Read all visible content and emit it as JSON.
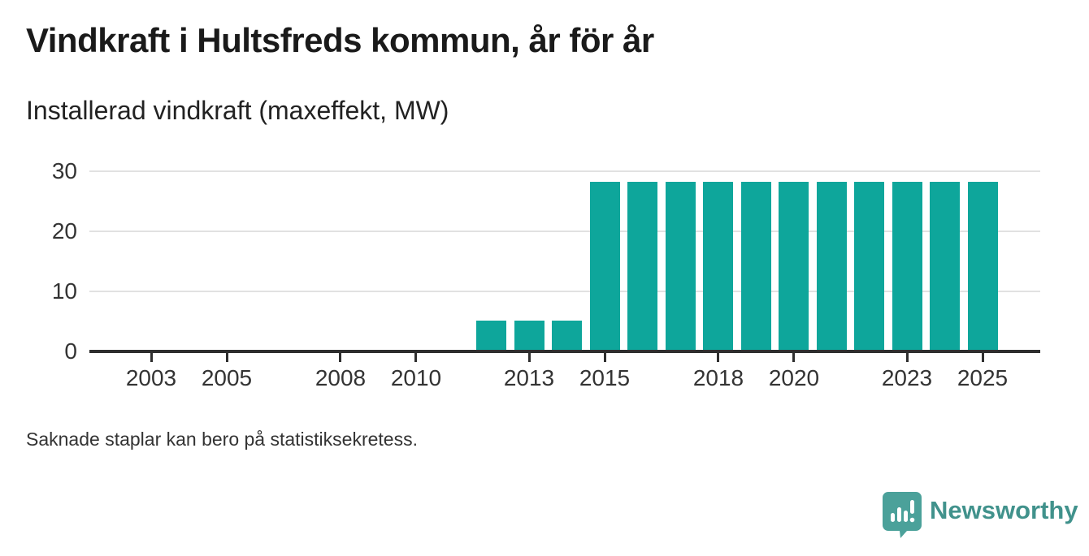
{
  "page": {
    "title": "Vindkraft i Hultsfreds kommun, år för år",
    "subtitle": "Installerad vindkraft (maxeffekt, MW)",
    "footnote": "Saknade staplar kan bero på statistiksekretess."
  },
  "branding": {
    "name": "Newsworthy",
    "icon": "newsworthy-speech-bubble-bar-chart-icon",
    "icon_color": "#4ba19a",
    "text_color": "#41928c"
  },
  "colors": {
    "bar": "#0ea69b",
    "axis": "#2e2e2e",
    "grid": "#e1e1e1",
    "label": "#333333",
    "title_text": "#1a1a1a"
  },
  "chart_data": {
    "type": "bar",
    "title": "Vindkraft i Hultsfreds kommun, år för år",
    "subtitle": "Installerad vindkraft (maxeffekt, MW)",
    "ylabel": "Installerad vindkraft (maxeffekt, MW)",
    "xlabel": "",
    "unit": "MW",
    "categories": [
      2002,
      2003,
      2004,
      2005,
      2006,
      2007,
      2008,
      2009,
      2010,
      2011,
      2012,
      2013,
      2014,
      2015,
      2016,
      2017,
      2018,
      2019,
      2020,
      2021,
      2022,
      2023,
      2024,
      2025
    ],
    "values": [
      null,
      null,
      null,
      null,
      null,
      null,
      null,
      null,
      null,
      null,
      5.2,
      5.2,
      5.2,
      28.3,
      28.3,
      28.3,
      28.3,
      28.3,
      28.3,
      28.3,
      28.3,
      28.3,
      28.3,
      28.3
    ],
    "x_tick_years": [
      2003,
      2005,
      2008,
      2010,
      2013,
      2015,
      2018,
      2020,
      2023,
      2025
    ],
    "y_ticks": [
      0,
      10,
      20,
      30
    ],
    "ylim": [
      0,
      30
    ],
    "grid": "horizontal",
    "legend": "none",
    "missing_note": "Saknade staplar kan bero på statistiksekretess."
  }
}
